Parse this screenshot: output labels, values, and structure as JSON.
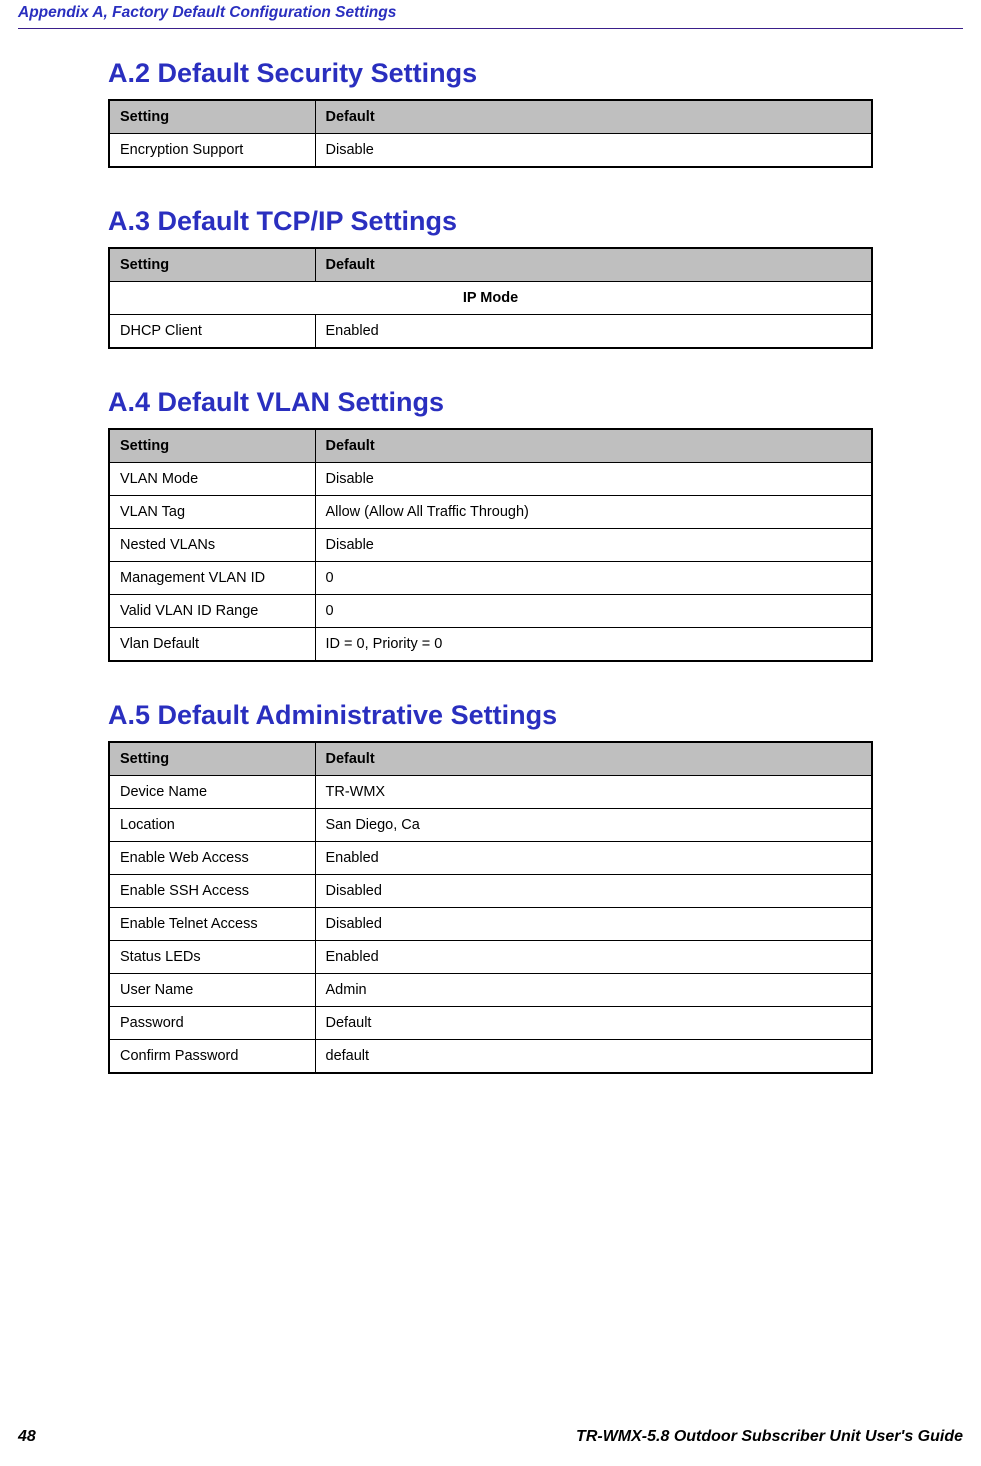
{
  "header": "Appendix A, Factory Default Configuration Settings",
  "pageNumber": "48",
  "footerTitle": "TR-WMX-5.8 Outdoor Subscriber Unit User's Guide",
  "sections": {
    "security": {
      "title": "A.2 Default Security Settings",
      "head": {
        "setting": "Setting",
        "default": "Default"
      },
      "rows": [
        {
          "setting": "Encryption Support",
          "default": "Disable"
        }
      ]
    },
    "tcpip": {
      "title": "A.3 Default TCP/IP Settings",
      "head": {
        "setting": "Setting",
        "default": "Default"
      },
      "subheader": "IP Mode",
      "rows": [
        {
          "setting": "DHCP Client",
          "default": "Enabled"
        }
      ]
    },
    "vlan": {
      "title": "A.4 Default VLAN Settings",
      "head": {
        "setting": "Setting",
        "default": "Default"
      },
      "rows": [
        {
          "setting": "VLAN Mode",
          "default": "Disable"
        },
        {
          "setting": "VLAN Tag",
          "default": "Allow (Allow All Traffic Through)"
        },
        {
          "setting": "Nested VLANs",
          "default": "Disable"
        },
        {
          "setting": "Management VLAN ID",
          "default": "0"
        },
        {
          "setting": "Valid VLAN ID Range",
          "default": "0"
        },
        {
          "setting": "Vlan Default",
          "default": "ID = 0, Priority = 0"
        }
      ]
    },
    "admin": {
      "title": "A.5 Default Administrative Settings",
      "head": {
        "setting": "Setting",
        "default": "Default"
      },
      "rows": [
        {
          "setting": "Device Name",
          "default": "TR-WMX"
        },
        {
          "setting": "Location",
          "default": "San Diego, Ca"
        },
        {
          "setting": "Enable Web Access",
          "default": "Enabled"
        },
        {
          "setting": "Enable SSH Access",
          "default": "Disabled"
        },
        {
          "setting": "Enable Telnet Access",
          "default": "Disabled"
        },
        {
          "setting": "Status LEDs",
          "default": "Enabled"
        },
        {
          "setting": "User Name",
          "default": "Admin"
        },
        {
          "setting": "Password",
          "default": "Default"
        },
        {
          "setting": "Confirm Password",
          "default": "default"
        }
      ]
    }
  }
}
